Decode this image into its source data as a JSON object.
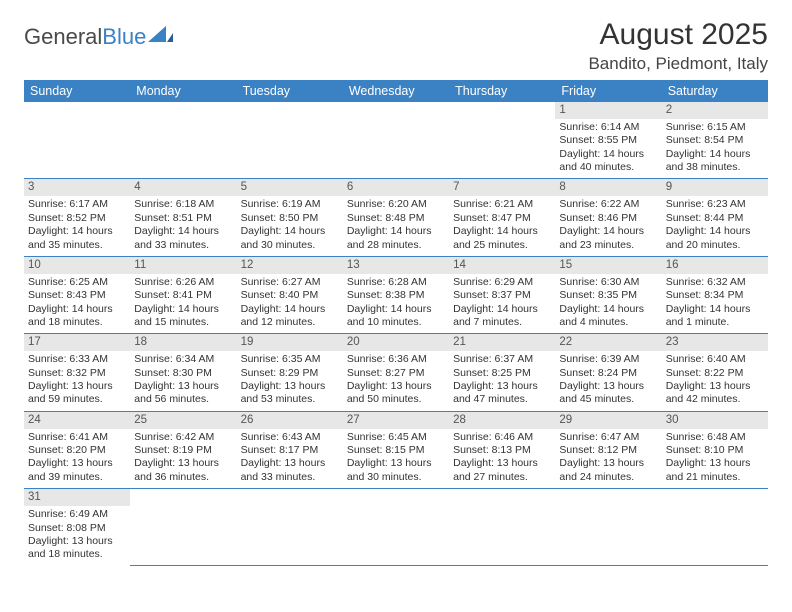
{
  "brand": {
    "name1": "General",
    "name2": "Blue"
  },
  "title": "August 2025",
  "location": "Bandito, Piedmont, Italy",
  "headers": [
    "Sunday",
    "Monday",
    "Tuesday",
    "Wednesday",
    "Thursday",
    "Friday",
    "Saturday"
  ],
  "colors": {
    "accent": "#3b82c4",
    "dayHeader": "#e7e7e7",
    "text": "#333333"
  },
  "weeks": [
    [
      null,
      null,
      null,
      null,
      null,
      {
        "d": 1,
        "sr": "6:14 AM",
        "ss": "8:55 PM",
        "dl": "14 hours and 40 minutes."
      },
      {
        "d": 2,
        "sr": "6:15 AM",
        "ss": "8:54 PM",
        "dl": "14 hours and 38 minutes."
      }
    ],
    [
      {
        "d": 3,
        "sr": "6:17 AM",
        "ss": "8:52 PM",
        "dl": "14 hours and 35 minutes."
      },
      {
        "d": 4,
        "sr": "6:18 AM",
        "ss": "8:51 PM",
        "dl": "14 hours and 33 minutes."
      },
      {
        "d": 5,
        "sr": "6:19 AM",
        "ss": "8:50 PM",
        "dl": "14 hours and 30 minutes."
      },
      {
        "d": 6,
        "sr": "6:20 AM",
        "ss": "8:48 PM",
        "dl": "14 hours and 28 minutes."
      },
      {
        "d": 7,
        "sr": "6:21 AM",
        "ss": "8:47 PM",
        "dl": "14 hours and 25 minutes."
      },
      {
        "d": 8,
        "sr": "6:22 AM",
        "ss": "8:46 PM",
        "dl": "14 hours and 23 minutes."
      },
      {
        "d": 9,
        "sr": "6:23 AM",
        "ss": "8:44 PM",
        "dl": "14 hours and 20 minutes."
      }
    ],
    [
      {
        "d": 10,
        "sr": "6:25 AM",
        "ss": "8:43 PM",
        "dl": "14 hours and 18 minutes."
      },
      {
        "d": 11,
        "sr": "6:26 AM",
        "ss": "8:41 PM",
        "dl": "14 hours and 15 minutes."
      },
      {
        "d": 12,
        "sr": "6:27 AM",
        "ss": "8:40 PM",
        "dl": "14 hours and 12 minutes."
      },
      {
        "d": 13,
        "sr": "6:28 AM",
        "ss": "8:38 PM",
        "dl": "14 hours and 10 minutes."
      },
      {
        "d": 14,
        "sr": "6:29 AM",
        "ss": "8:37 PM",
        "dl": "14 hours and 7 minutes."
      },
      {
        "d": 15,
        "sr": "6:30 AM",
        "ss": "8:35 PM",
        "dl": "14 hours and 4 minutes."
      },
      {
        "d": 16,
        "sr": "6:32 AM",
        "ss": "8:34 PM",
        "dl": "14 hours and 1 minute."
      }
    ],
    [
      {
        "d": 17,
        "sr": "6:33 AM",
        "ss": "8:32 PM",
        "dl": "13 hours and 59 minutes."
      },
      {
        "d": 18,
        "sr": "6:34 AM",
        "ss": "8:30 PM",
        "dl": "13 hours and 56 minutes."
      },
      {
        "d": 19,
        "sr": "6:35 AM",
        "ss": "8:29 PM",
        "dl": "13 hours and 53 minutes."
      },
      {
        "d": 20,
        "sr": "6:36 AM",
        "ss": "8:27 PM",
        "dl": "13 hours and 50 minutes."
      },
      {
        "d": 21,
        "sr": "6:37 AM",
        "ss": "8:25 PM",
        "dl": "13 hours and 47 minutes."
      },
      {
        "d": 22,
        "sr": "6:39 AM",
        "ss": "8:24 PM",
        "dl": "13 hours and 45 minutes."
      },
      {
        "d": 23,
        "sr": "6:40 AM",
        "ss": "8:22 PM",
        "dl": "13 hours and 42 minutes."
      }
    ],
    [
      {
        "d": 24,
        "sr": "6:41 AM",
        "ss": "8:20 PM",
        "dl": "13 hours and 39 minutes."
      },
      {
        "d": 25,
        "sr": "6:42 AM",
        "ss": "8:19 PM",
        "dl": "13 hours and 36 minutes."
      },
      {
        "d": 26,
        "sr": "6:43 AM",
        "ss": "8:17 PM",
        "dl": "13 hours and 33 minutes."
      },
      {
        "d": 27,
        "sr": "6:45 AM",
        "ss": "8:15 PM",
        "dl": "13 hours and 30 minutes."
      },
      {
        "d": 28,
        "sr": "6:46 AM",
        "ss": "8:13 PM",
        "dl": "13 hours and 27 minutes."
      },
      {
        "d": 29,
        "sr": "6:47 AM",
        "ss": "8:12 PM",
        "dl": "13 hours and 24 minutes."
      },
      {
        "d": 30,
        "sr": "6:48 AM",
        "ss": "8:10 PM",
        "dl": "13 hours and 21 minutes."
      }
    ],
    [
      {
        "d": 31,
        "sr": "6:49 AM",
        "ss": "8:08 PM",
        "dl": "13 hours and 18 minutes."
      },
      null,
      null,
      null,
      null,
      null,
      null
    ]
  ]
}
